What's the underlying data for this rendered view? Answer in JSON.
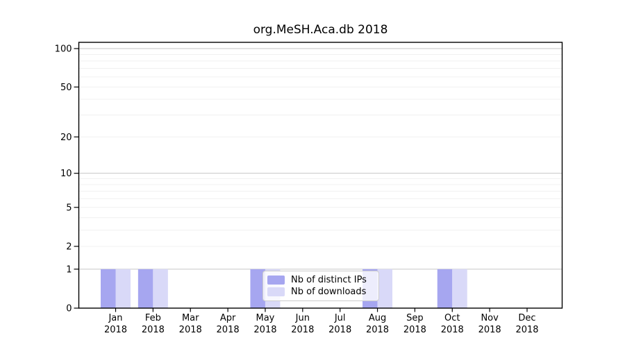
{
  "chart_data": {
    "type": "bar",
    "title": "org.MeSH.Aca.db 2018",
    "categories": [
      "Jan",
      "Feb",
      "Mar",
      "Apr",
      "May",
      "Jun",
      "Jul",
      "Aug",
      "Sep",
      "Oct",
      "Nov",
      "Dec"
    ],
    "year": "2018",
    "series": [
      {
        "name": "Nb of distinct IPs",
        "color": "#a6a6f0",
        "values": [
          1,
          1,
          0,
          0,
          1,
          0,
          0,
          1,
          0,
          1,
          0,
          0
        ]
      },
      {
        "name": "Nb of downloads",
        "color": "#d9d9f8",
        "values": [
          1,
          1,
          0,
          0,
          1,
          0,
          0,
          1,
          0,
          1,
          0,
          0
        ]
      }
    ],
    "y_ticks": [
      100,
      50,
      20,
      10,
      5,
      2,
      1,
      0
    ],
    "ylim": [
      0,
      100
    ],
    "y_scale": "log1p",
    "grid_major": [
      1,
      10,
      100
    ],
    "grid_minor": [
      2,
      3,
      4,
      5,
      6,
      7,
      8,
      9,
      20,
      30,
      40,
      50,
      60,
      70,
      80,
      90
    ],
    "legend_position": "inside-bottom-center",
    "colors": {
      "grid_major": "#c6c6c6",
      "grid_minor": "#f0f0f0",
      "axis": "#000000",
      "background": "#ffffff"
    }
  }
}
